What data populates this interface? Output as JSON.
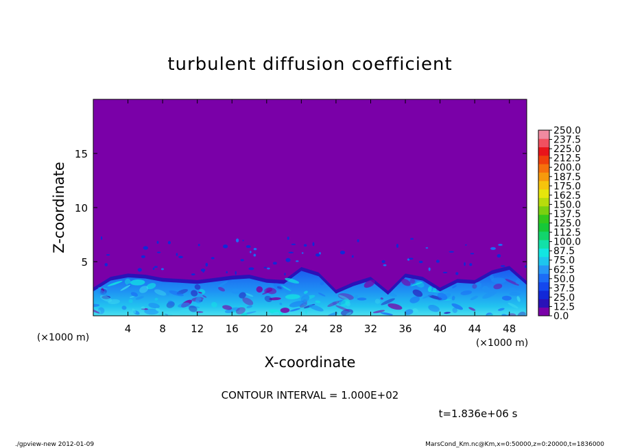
{
  "chart_data": {
    "type": "heatmap",
    "title": "turbulent diffusion coefficient",
    "xlabel": "X-coordinate",
    "ylabel": "Z-coordinate",
    "x_unit": "(×1000 m)",
    "y_unit": "(×1000 m)",
    "xlim": [
      0,
      50
    ],
    "ylim": [
      0,
      20
    ],
    "x_ticks": [
      4,
      8,
      12,
      16,
      20,
      24,
      28,
      32,
      36,
      40,
      44,
      48
    ],
    "y_ticks": [
      5,
      10,
      15
    ],
    "grid": false,
    "colorbar": {
      "levels": [
        "0.0",
        "12.5",
        "25.0",
        "37.5",
        "50.0",
        "62.5",
        "75.0",
        "87.5",
        "100.0",
        "112.5",
        "125.0",
        "137.5",
        "150.0",
        "162.5",
        "175.0",
        "187.5",
        "200.0",
        "212.5",
        "225.0",
        "237.5",
        "250.0"
      ],
      "colors": [
        "#7a00a8",
        "#2a12b8",
        "#1228d8",
        "#1448ee",
        "#1c6cf6",
        "#2696f6",
        "#1ec6ee",
        "#12e6e2",
        "#12e0a8",
        "#12d46c",
        "#16c838",
        "#32c81c",
        "#7ad010",
        "#b8dc0c",
        "#e6e60c",
        "#f6c40c",
        "#f69a0c",
        "#f6700c",
        "#f0400c",
        "#e8141a",
        "#f05060",
        "#f08aa0"
      ]
    },
    "mixed_layer_top": {
      "x": [
        0,
        2,
        4,
        6,
        8,
        10,
        12,
        14,
        16,
        18,
        20,
        22,
        24,
        26,
        28,
        30,
        32,
        34,
        36,
        38,
        40,
        42,
        44,
        46,
        48,
        50
      ],
      "z": [
        2.6,
        3.6,
        3.9,
        3.8,
        3.5,
        3.4,
        3.3,
        3.5,
        3.7,
        3.8,
        3.4,
        3.3,
        4.5,
        4.0,
        2.4,
        3.1,
        3.6,
        2.3,
        3.9,
        3.6,
        2.6,
        3.4,
        3.3,
        4.2,
        4.6,
        3.2
      ]
    },
    "annotations": [
      "CONTOUR INTERVAL = 1.000E+02",
      "t=1.836e+06 s"
    ]
  },
  "footer": {
    "left": "./gpview-new   2012-01-09",
    "right": "MarsCond_Km.nc@Km,x=0:50000,z=0:20000,t=1836000"
  }
}
